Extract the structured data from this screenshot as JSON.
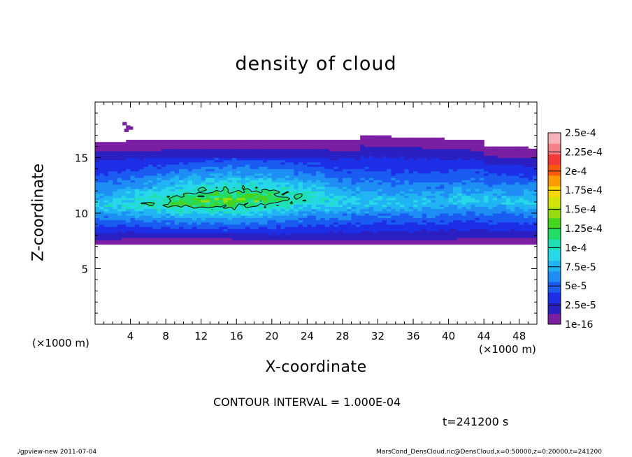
{
  "chart_data": {
    "type": "heatmap",
    "title": "density of cloud",
    "xlabel": "X-coordinate",
    "ylabel": "Z-coordinate",
    "x_unit": "(×1000 m)",
    "z_unit": "(×1000 m)",
    "xlim": [
      0,
      50
    ],
    "ylim": [
      0,
      20
    ],
    "x_ticks": [
      4,
      8,
      12,
      16,
      20,
      24,
      28,
      32,
      36,
      40,
      44,
      48
    ],
    "y_ticks": [
      5,
      10,
      15
    ],
    "colorbar": {
      "labels": [
        "1e-16",
        "2.5e-5",
        "5e-5",
        "7.5e-5",
        "1e-4",
        "1.25e-4",
        "1.5e-4",
        "1.75e-4",
        "2e-4",
        "2.25e-4",
        "2.5e-4"
      ],
      "colors": [
        "#7a1fa2",
        "#2a1fc0",
        "#1c2ee6",
        "#1a5cf2",
        "#1e8ef4",
        "#20b4f2",
        "#26d8e8",
        "#1fe0b4",
        "#22dc66",
        "#44d41e",
        "#96dc10",
        "#d2e408",
        "#fcd800",
        "#fc9a00",
        "#fb5a08",
        "#f43838",
        "#f68088",
        "#f7b2b8"
      ]
    },
    "contour_levels": [
      0.0001
    ],
    "cloud_layer": {
      "z_bottom_km": 7.2,
      "z_top_km": 16.8,
      "z_peak_density_km": 10.8,
      "peak_density": 0.00013
    }
  },
  "annotations": {
    "contour_interval": "CONTOUR INTERVAL = 1.000E-04",
    "time": "t=241200 s"
  },
  "footer": {
    "left": "./gpview-new   2011-07-04",
    "right": "MarsCond_DensCloud.nc@DensCloud,x=0:50000,z=0:20000,t=241200"
  }
}
